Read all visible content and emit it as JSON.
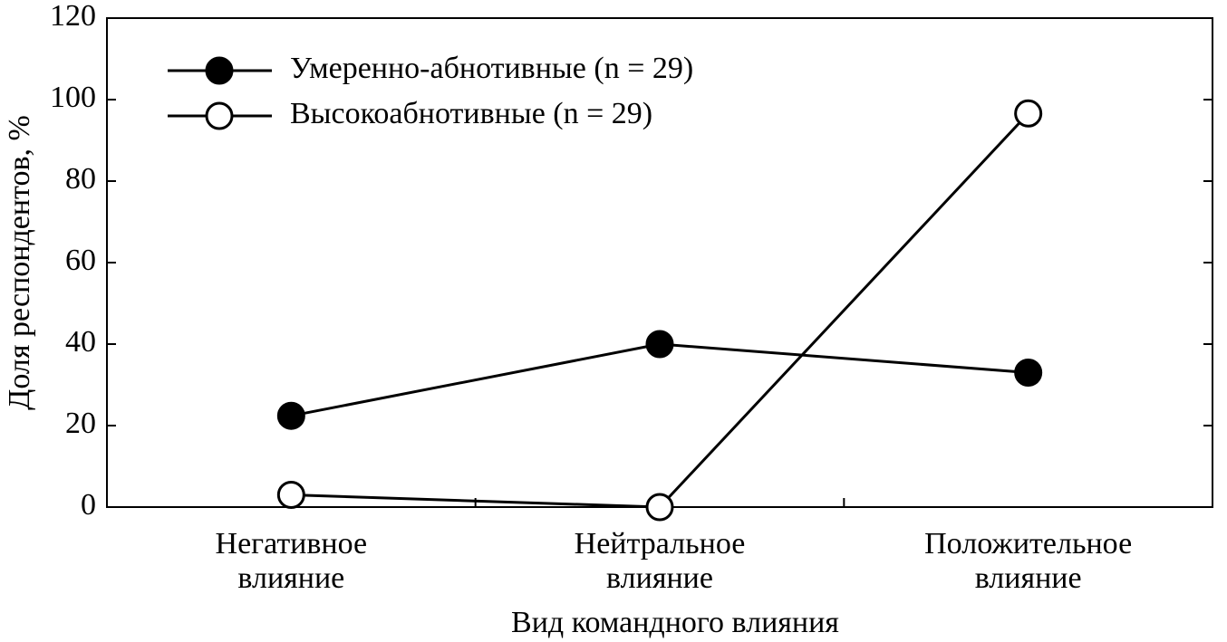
{
  "chart_data": {
    "type": "line",
    "x_label": "Вид командного влияния",
    "y_label": "Доля респондентов, %",
    "categories": [
      "Негативное\nвлияние",
      "Нейтральное\nвлияние",
      "Положительное\nвлияние"
    ],
    "series": [
      {
        "name": "Умеренно-абнотивные (n = 29)",
        "color": "#000000",
        "marker": "filled",
        "values": [
          22.4,
          40,
          33
        ]
      },
      {
        "name": "Высокоабнотивные (n = 29)",
        "color": "#000000",
        "marker": "open",
        "values": [
          3,
          0,
          96.6
        ]
      }
    ],
    "ylim": [
      0,
      120
    ],
    "yticks": [
      0,
      20,
      40,
      60,
      80,
      100,
      120
    ],
    "grid": false,
    "legend": "upper left"
  }
}
